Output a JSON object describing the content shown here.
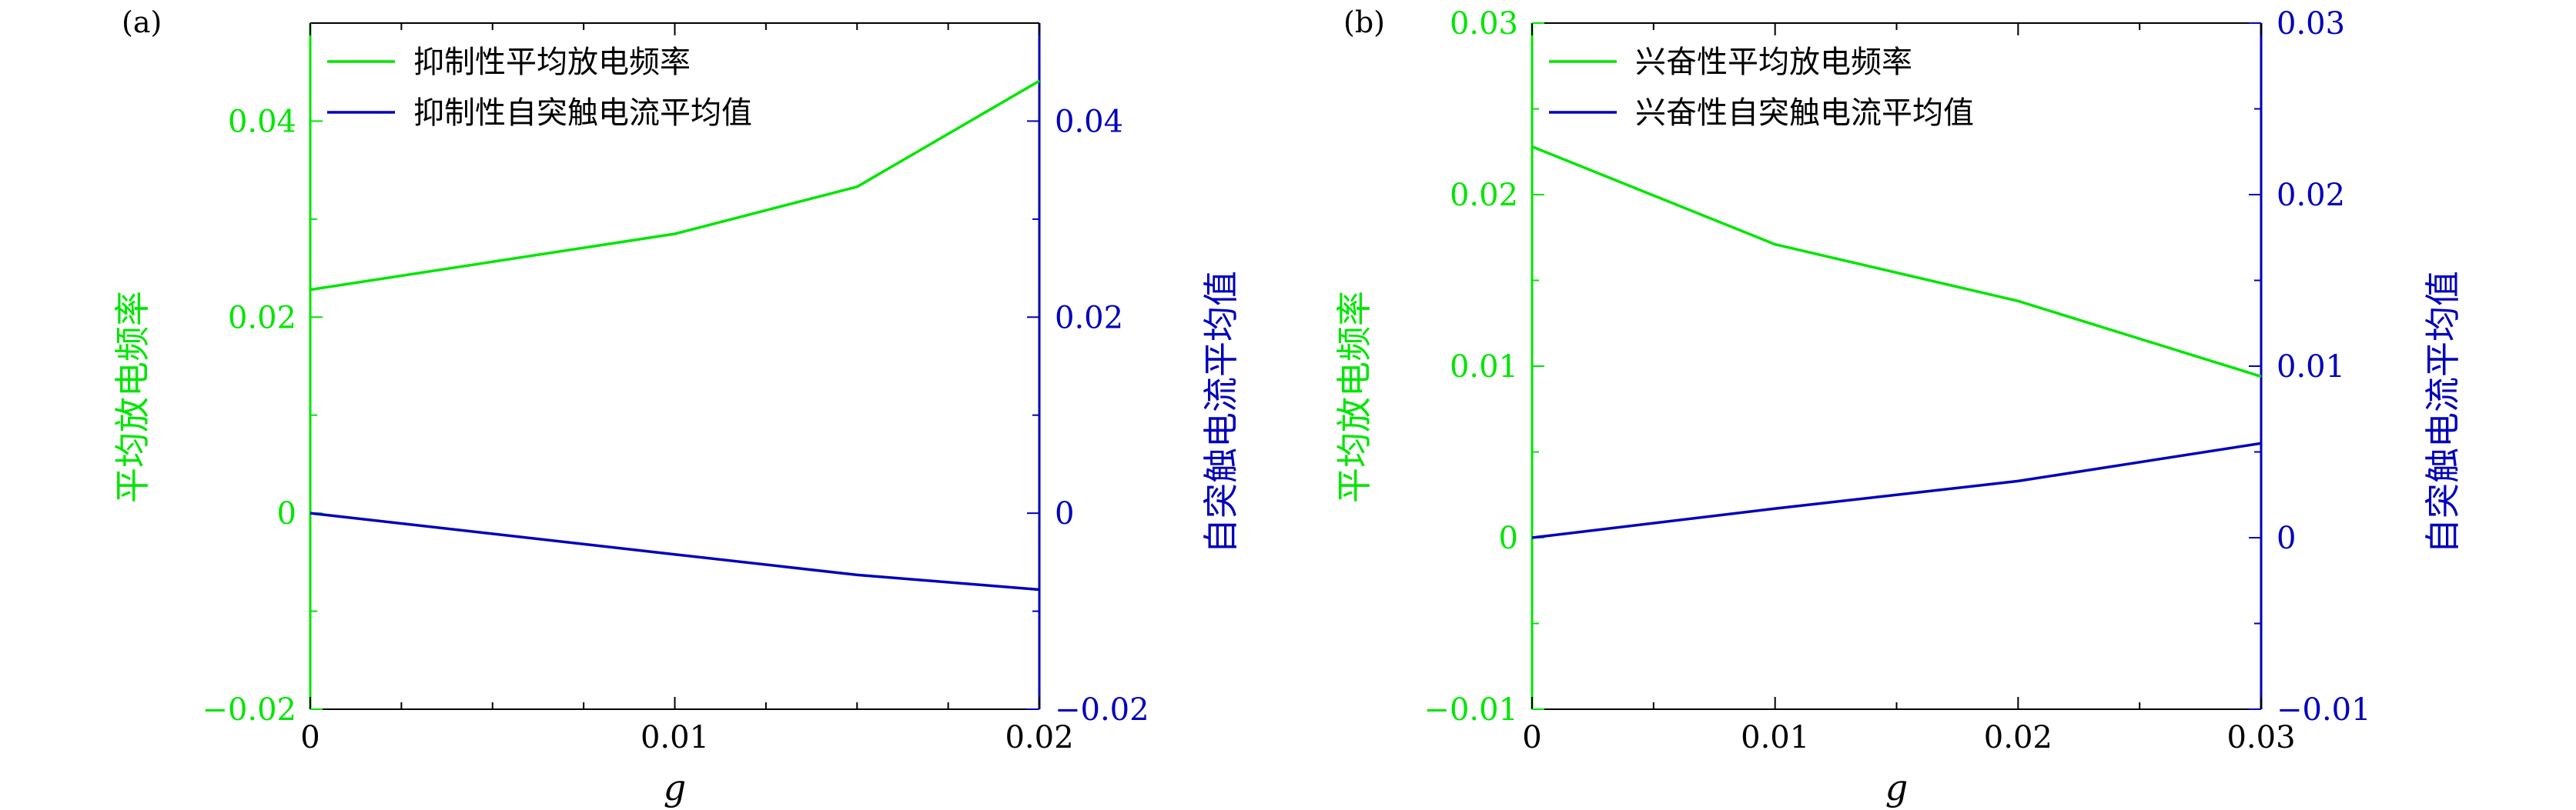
{
  "colors": {
    "left": "#00e600",
    "right": "#0000bb",
    "frame": "#000000"
  },
  "chart_data": [
    {
      "type": "line",
      "panel_label": "(a)",
      "xlabel": "g",
      "ylabel_left": "平均放电频率",
      "ylabel_right": "自突触电流平均值",
      "xlim": [
        0,
        0.02
      ],
      "xticks": [
        0,
        0.01,
        0.02
      ],
      "xtick_labels": [
        "0",
        "0.01",
        "0.02"
      ],
      "ylim_left": [
        -0.02,
        0.05
      ],
      "yticks_left": [
        -0.02,
        0,
        0.02,
        0.04
      ],
      "ytick_labels_left": [
        "−0.02",
        "0",
        "0.02",
        "0.04"
      ],
      "ylim_right": [
        -0.02,
        0.05
      ],
      "yticks_right": [
        -0.02,
        0,
        0.02,
        0.04
      ],
      "ytick_labels_right": [
        "−0.02",
        "0",
        "0.02",
        "0.04"
      ],
      "legend_position": "top-left",
      "series": [
        {
          "name": "抑制性平均放电频率",
          "axis": "left",
          "color": "#00e600",
          "x": [
            0,
            0.01,
            0.015,
            0.02
          ],
          "y": [
            0.0228,
            0.0285,
            0.0333,
            0.0441
          ]
        },
        {
          "name": "抑制性自突触电流平均值",
          "axis": "right",
          "color": "#0000bb",
          "x": [
            0,
            0.01,
            0.015,
            0.02
          ],
          "y": [
            0.0,
            -0.0042,
            -0.0063,
            -0.0078
          ]
        }
      ]
    },
    {
      "type": "line",
      "panel_label": "(b)",
      "xlabel": "g",
      "ylabel_left": "平均放电频率",
      "ylabel_right": "自突触电流平均值",
      "xlim": [
        0,
        0.03
      ],
      "xticks": [
        0,
        0.01,
        0.02,
        0.03
      ],
      "xtick_labels": [
        "0",
        "0.01",
        "0.02",
        "0.03"
      ],
      "ylim_left": [
        -0.01,
        0.03
      ],
      "yticks_left": [
        -0.01,
        0,
        0.01,
        0.02,
        0.03
      ],
      "ytick_labels_left": [
        "−0.01",
        "0",
        "0.01",
        "0.02",
        "0.03"
      ],
      "ylim_right": [
        -0.01,
        0.03
      ],
      "yticks_right": [
        -0.01,
        0,
        0.01,
        0.02,
        0.03
      ],
      "ytick_labels_right": [
        "−0.01",
        "0",
        "0.01",
        "0.02",
        "0.03"
      ],
      "legend_position": "top-left",
      "series": [
        {
          "name": "兴奋性平均放电频率",
          "axis": "left",
          "color": "#00e600",
          "x": [
            0,
            0.01,
            0.02,
            0.03
          ],
          "y": [
            0.0228,
            0.0171,
            0.0138,
            0.0094
          ]
        },
        {
          "name": "兴奋性自突触电流平均值",
          "axis": "right",
          "color": "#0000bb",
          "x": [
            0,
            0.01,
            0.02,
            0.03
          ],
          "y": [
            0.0,
            0.0017,
            0.0033,
            0.0055
          ]
        }
      ]
    }
  ]
}
